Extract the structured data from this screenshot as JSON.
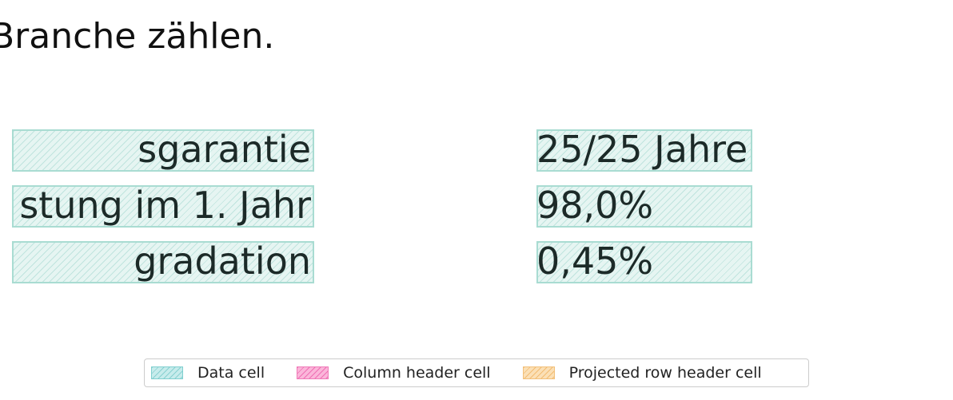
{
  "document": {
    "heading_fragment": "Branche zählen."
  },
  "table": {
    "rows": [
      {
        "label": "sgarantie",
        "value": "25/25 Jahre"
      },
      {
        "label": "stung im 1. Jahr",
        "value": "98,0%"
      },
      {
        "label": "gradation",
        "value": "0,45%"
      }
    ]
  },
  "legend": {
    "items": [
      {
        "label": "Data cell",
        "color": "#c7ecec"
      },
      {
        "label": "Column header cell",
        "color": "#fbb6da"
      },
      {
        "label": "Projected row header cell",
        "color": "#fbe0b6"
      }
    ]
  }
}
